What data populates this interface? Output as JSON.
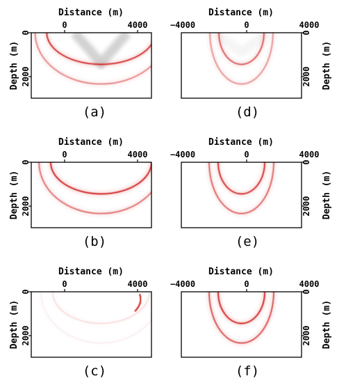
{
  "colors": {
    "wave": "#cc1111",
    "shadow": "#8a8a8a"
  },
  "panels": [
    {
      "id": "a",
      "caption": "(a)",
      "x_title": "Distance (m)",
      "y_title": "Depth (m)",
      "x_ticks": [
        "0",
        "4000"
      ],
      "y_ticks": [
        "0",
        "2000"
      ],
      "y_axis_side": "left",
      "x_range": [
        -1400,
        4800
      ],
      "y_range": [
        0,
        3000
      ],
      "wavefronts": [
        {
          "center_x": 2200,
          "a": 2800,
          "b": 1450,
          "intensity": 0.9
        },
        {
          "center_x": 2200,
          "a": 3400,
          "b": 2350,
          "intensity": 0.5
        }
      ],
      "cone": {
        "apex_x": 2200,
        "apex_depth": 1400,
        "strength": 0.7
      }
    },
    {
      "id": "d",
      "caption": "(d)",
      "x_title": "Distance (m)",
      "y_title": "Depth (m)",
      "x_ticks": [
        "−4000",
        "0",
        "4000"
      ],
      "y_ticks": [
        "0",
        "2000"
      ],
      "y_axis_side": "right",
      "x_range": [
        -4000,
        4000
      ],
      "y_range": [
        0,
        3000
      ],
      "wavefronts": [
        {
          "center_x": 0,
          "a": 1500,
          "b": 1450,
          "intensity": 0.7
        },
        {
          "center_x": 0,
          "a": 2100,
          "b": 2350,
          "intensity": 0.45
        }
      ],
      "cone": {
        "apex_x": 0,
        "apex_depth": 900,
        "strength": 0.15
      }
    },
    {
      "id": "b",
      "caption": "(b)",
      "x_title": "Distance (m)",
      "y_title": "Depth (m)",
      "x_ticks": [
        "0",
        "4000"
      ],
      "y_ticks": [
        "0",
        "2000"
      ],
      "y_axis_side": "left",
      "x_range": [
        -1400,
        4800
      ],
      "y_range": [
        0,
        3000
      ],
      "wavefronts": [
        {
          "center_x": 2200,
          "a": 2600,
          "b": 1450,
          "intensity": 0.95
        },
        {
          "center_x": 2200,
          "a": 3200,
          "b": 2350,
          "intensity": 0.6
        }
      ],
      "cone": null
    },
    {
      "id": "e",
      "caption": "(e)",
      "x_title": "Distance (m)",
      "y_title": "Depth (m)",
      "x_ticks": [
        "−4000",
        "0",
        "4000"
      ],
      "y_ticks": [
        "0",
        "2000"
      ],
      "y_axis_side": "right",
      "x_range": [
        -4000,
        4000
      ],
      "y_range": [
        0,
        3000
      ],
      "wavefronts": [
        {
          "center_x": 0,
          "a": 1550,
          "b": 1450,
          "intensity": 0.9
        },
        {
          "center_x": 0,
          "a": 2150,
          "b": 2350,
          "intensity": 0.65
        }
      ],
      "cone": null
    },
    {
      "id": "c",
      "caption": "(c)",
      "x_title": "Distance (m)",
      "y_title": "Depth (m)",
      "x_ticks": [
        "0",
        "4000"
      ],
      "y_ticks": [
        "0",
        "2000"
      ],
      "y_axis_side": "left",
      "x_range": [
        -1400,
        4800
      ],
      "y_range": [
        0,
        3000
      ],
      "wavefronts": [
        {
          "center_x": 2200,
          "a": 2500,
          "b": 1450,
          "intensity": 0.12
        },
        {
          "center_x": 2200,
          "a": 3100,
          "b": 2350,
          "intensity": 0.06
        }
      ],
      "cone": null,
      "edge_event": {
        "x": 4300,
        "depth_top": 100,
        "depth_bottom": 900,
        "intensity": 0.85
      }
    },
    {
      "id": "f",
      "caption": "(f)",
      "x_title": "Distance (m)",
      "y_title": "Depth (m)",
      "x_ticks": [
        "−4000",
        "0",
        "4000"
      ],
      "y_ticks": [
        "0",
        "2000"
      ],
      "y_axis_side": "right",
      "x_range": [
        -4000,
        4000
      ],
      "y_range": [
        0,
        3000
      ],
      "wavefronts": [
        {
          "center_x": 0,
          "a": 1550,
          "b": 1450,
          "intensity": 0.95
        },
        {
          "center_x": 0,
          "a": 2150,
          "b": 2350,
          "intensity": 0.75
        }
      ],
      "cone": null
    }
  ]
}
